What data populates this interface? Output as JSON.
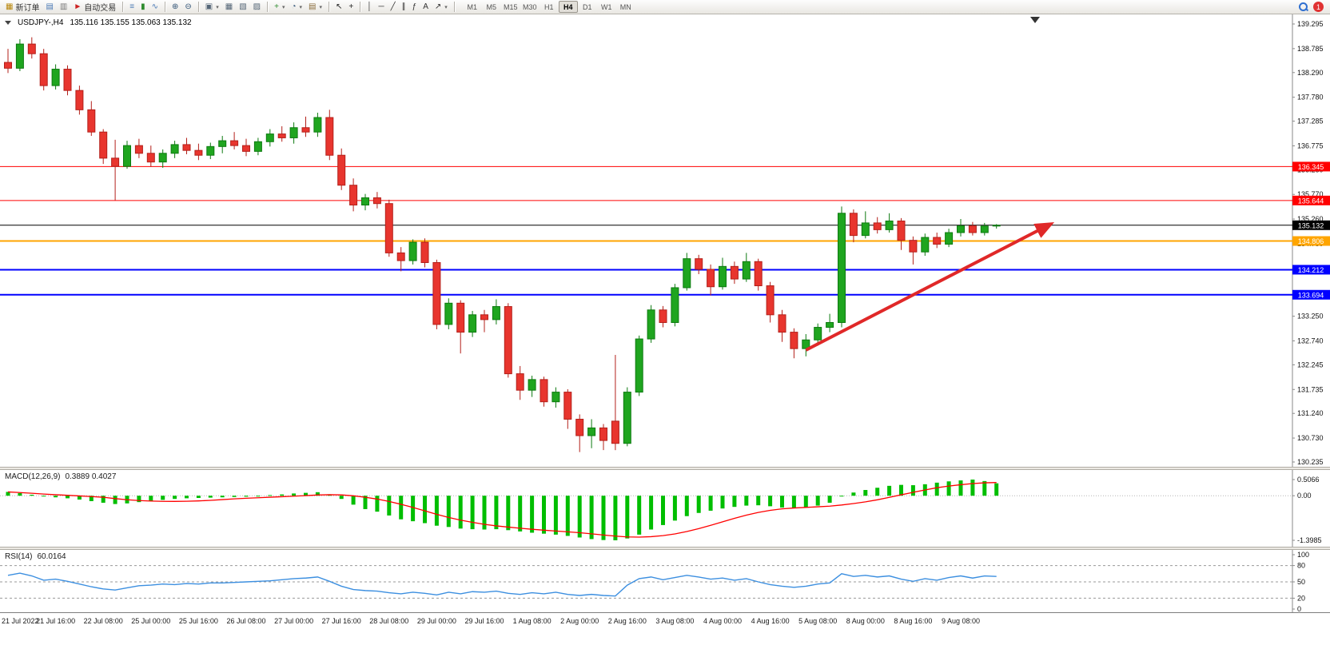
{
  "toolbar": {
    "notification_count": "1",
    "groups": [
      {
        "name": "trade",
        "items": [
          {
            "name": "new-order-button",
            "icon": "new-order-icon",
            "glyph": "▦",
            "glyph_color": "#b8860b",
            "label": "新订单"
          },
          {
            "name": "chart-window-button",
            "icon": "chart-window-icon",
            "glyph": "▤",
            "glyph_color": "#4a7ab5"
          },
          {
            "name": "profiles-button",
            "icon": "profiles-icon",
            "glyph": "▥",
            "glyph_color": "#777777"
          },
          {
            "name": "auto-trading-button",
            "icon": "auto-trading-icon",
            "glyph": "►",
            "glyph_color": "#cc2222",
            "label": "自动交易"
          }
        ]
      },
      {
        "name": "chart-types",
        "items": [
          {
            "name": "bar-chart-button",
            "icon": "bar-chart-icon",
            "glyph": "≡",
            "glyph_color": "#4a7ab5"
          },
          {
            "name": "candlestick-chart-button",
            "icon": "candlestick-chart-icon",
            "glyph": "▮",
            "glyph_color": "#2e8b2e"
          },
          {
            "name": "line-chart-button",
            "icon": "line-chart-icon",
            "glyph": "∿",
            "glyph_color": "#4a7ab5"
          }
        ]
      },
      {
        "name": "zoom",
        "items": [
          {
            "name": "zoom-in-button",
            "icon": "zoom-in-icon",
            "glyph": "⊕",
            "glyph_color": "#335577"
          },
          {
            "name": "zoom-out-button",
            "icon": "zoom-out-icon",
            "glyph": "⊖",
            "glyph_color": "#335577"
          }
        ]
      },
      {
        "name": "windows",
        "items": [
          {
            "name": "new-chart-button",
            "icon": "new-chart-icon",
            "glyph": "▣",
            "glyph_color": "#556677",
            "dropdown": true
          },
          {
            "name": "tile-windows-button",
            "icon": "tile-windows-icon",
            "glyph": "▦",
            "glyph_color": "#556677"
          },
          {
            "name": "cascade-windows-button",
            "icon": "cascade-windows-icon",
            "glyph": "▧",
            "glyph_color": "#556677"
          },
          {
            "name": "arrange-windows-button",
            "icon": "arrange-windows-icon",
            "glyph": "▨",
            "glyph_color": "#556677"
          }
        ]
      },
      {
        "name": "tools",
        "items": [
          {
            "name": "indicators-button",
            "icon": "indicators-icon",
            "glyph": "+",
            "glyph_color": "#2e8b2e",
            "dropdown": true
          },
          {
            "name": "periods-button",
            "icon": "periods-icon",
            "glyph": "◔",
            "glyph_color": "#335577",
            "dropdown": true
          },
          {
            "name": "templates-button",
            "icon": "templates-icon",
            "glyph": "▤",
            "glyph_color": "#8a6d3b",
            "dropdown": true
          }
        ]
      },
      {
        "name": "cursor",
        "items": [
          {
            "name": "cursor-button",
            "icon": "cursor-icon",
            "glyph": "↖",
            "glyph_color": "#222222"
          },
          {
            "name": "crosshair-button",
            "icon": "crosshair-icon",
            "glyph": "+",
            "glyph_color": "#222222"
          }
        ]
      },
      {
        "name": "drawing",
        "items": [
          {
            "name": "vertical-line-button",
            "icon": "vertical-line-icon",
            "glyph": "│",
            "glyph_color": "#333333"
          },
          {
            "name": "horizontal-line-button",
            "icon": "horizontal-line-icon",
            "glyph": "─",
            "glyph_color": "#333333"
          },
          {
            "name": "trendline-button",
            "icon": "trendline-icon",
            "glyph": "╱",
            "glyph_color": "#333333"
          },
          {
            "name": "channel-button",
            "icon": "channel-icon",
            "glyph": "∥",
            "glyph_color": "#333333"
          },
          {
            "name": "fibonacci-button",
            "icon": "fibonacci-icon",
            "glyph": "ƒ",
            "glyph_color": "#333333"
          },
          {
            "name": "text-button",
            "icon": "text-icon",
            "glyph": "A",
            "glyph_color": "#333333"
          },
          {
            "name": "arrows-button",
            "icon": "arrows-icon",
            "glyph": "↗",
            "glyph_color": "#333333",
            "dropdown": true
          }
        ]
      }
    ],
    "timeframes": {
      "items": [
        "M1",
        "M5",
        "M15",
        "M30",
        "H1",
        "H4",
        "D1",
        "W1",
        "MN"
      ],
      "active": "H4"
    }
  },
  "chart": {
    "header_symbol": "USDJPY-,H4",
    "header_ohlc": "135.116 135.155 135.063 135.132",
    "colors": {
      "up": "#1fa51f",
      "up_border": "#0d7a10",
      "down": "#e8352e",
      "down_border": "#b3201a",
      "macd_bar": "#00be00",
      "macd_signal": "#ff0000",
      "rsi_line": "#3c8fe0",
      "axis_line": "#8a8a8a",
      "grid": "#c8c8c8"
    }
  },
  "chart_data": {
    "type": "candlestick+indicators",
    "symbol": "USDJPY-",
    "timeframe": "H4",
    "current_ohlc": {
      "open": "135.116",
      "high": "135.155",
      "low": "135.063",
      "close": "135.132"
    },
    "y_axis": {
      "min": 130.235,
      "max": 139.295,
      "labels": [
        "139.295",
        "138.785",
        "138.290",
        "137.780",
        "137.285",
        "136.775",
        "136.280",
        "135.770",
        "135.260",
        "134.750",
        "134.240",
        "133.730",
        "133.250",
        "132.740",
        "132.245",
        "131.735",
        "131.240",
        "130.730",
        "130.235"
      ]
    },
    "levels": [
      {
        "price": 136.345,
        "label": "136.345",
        "color": "#ff0000",
        "width": 1
      },
      {
        "price": 135.644,
        "label": "135.644",
        "color": "#ff0000",
        "width": 1
      },
      {
        "price": 135.132,
        "label": "135.132",
        "color": "#000000",
        "width": 1,
        "current": true
      },
      {
        "price": 134.806,
        "label": "134.806",
        "color": "#ffa500",
        "width": 2
      },
      {
        "price": 134.212,
        "label": "134.212",
        "color": "#0000ff",
        "width": 2
      },
      {
        "price": 133.694,
        "label": "133.694",
        "color": "#0000ff",
        "width": 2
      }
    ],
    "time_labels": [
      "21 Jul 2022",
      "21 Jul 16:00",
      "22 Jul 08:00",
      "25 Jul 00:00",
      "25 Jul 16:00",
      "26 Jul 08:00",
      "27 Jul 00:00",
      "27 Jul 16:00",
      "28 Jul 08:00",
      "29 Jul 00:00",
      "29 Jul 16:00",
      "1 Aug 08:00",
      "2 Aug 00:00",
      "2 Aug 16:00",
      "3 Aug 08:00",
      "4 Aug 00:00",
      "4 Aug 16:00",
      "5 Aug 08:00",
      "8 Aug 00:00",
      "8 Aug 16:00",
      "9 Aug 08:00"
    ],
    "label_every_n_candles": 4,
    "candles": [
      [
        138.5,
        138.78,
        138.28,
        138.38
      ],
      [
        138.38,
        138.98,
        138.32,
        138.88
      ],
      [
        138.88,
        139.02,
        138.58,
        138.68
      ],
      [
        138.68,
        138.78,
        137.92,
        138.02
      ],
      [
        138.02,
        138.46,
        137.94,
        138.36
      ],
      [
        138.36,
        138.44,
        137.82,
        137.92
      ],
      [
        137.92,
        138.02,
        137.42,
        137.52
      ],
      [
        137.52,
        137.7,
        136.98,
        137.06
      ],
      [
        137.06,
        137.12,
        136.4,
        136.52
      ],
      [
        136.52,
        136.9,
        135.65,
        136.35
      ],
      [
        136.35,
        136.88,
        136.3,
        136.78
      ],
      [
        136.78,
        136.92,
        136.52,
        136.62
      ],
      [
        136.62,
        136.78,
        136.34,
        136.44
      ],
      [
        136.44,
        136.7,
        136.32,
        136.62
      ],
      [
        136.62,
        136.88,
        136.52,
        136.8
      ],
      [
        136.8,
        136.94,
        136.6,
        136.68
      ],
      [
        136.68,
        136.82,
        136.48,
        136.58
      ],
      [
        136.58,
        136.84,
        136.5,
        136.76
      ],
      [
        136.76,
        136.98,
        136.62,
        136.88
      ],
      [
        136.88,
        137.06,
        136.7,
        136.78
      ],
      [
        136.78,
        136.92,
        136.56,
        136.66
      ],
      [
        136.66,
        136.94,
        136.58,
        136.86
      ],
      [
        136.86,
        137.12,
        136.76,
        137.02
      ],
      [
        137.02,
        137.18,
        136.86,
        136.94
      ],
      [
        136.94,
        137.26,
        136.82,
        137.15
      ],
      [
        137.15,
        137.38,
        136.96,
        137.06
      ],
      [
        137.06,
        137.46,
        136.96,
        137.36
      ],
      [
        137.36,
        137.52,
        136.48,
        136.58
      ],
      [
        136.58,
        136.72,
        135.86,
        135.96
      ],
      [
        135.96,
        136.1,
        135.42,
        135.55
      ],
      [
        135.55,
        135.78,
        135.44,
        135.7
      ],
      [
        135.7,
        135.82,
        135.48,
        135.58
      ],
      [
        135.58,
        135.66,
        134.48,
        134.56
      ],
      [
        134.56,
        134.68,
        134.18,
        134.4
      ],
      [
        134.4,
        134.84,
        134.32,
        134.78
      ],
      [
        134.78,
        134.86,
        134.26,
        134.36
      ],
      [
        134.36,
        134.42,
        132.98,
        133.08
      ],
      [
        133.08,
        133.62,
        132.98,
        133.52
      ],
      [
        133.52,
        133.58,
        132.48,
        132.92
      ],
      [
        132.92,
        133.36,
        132.82,
        133.28
      ],
      [
        133.28,
        133.38,
        132.92,
        133.18
      ],
      [
        133.18,
        133.6,
        133.08,
        133.45
      ],
      [
        133.45,
        133.52,
        131.98,
        132.06
      ],
      [
        132.06,
        132.22,
        131.52,
        131.72
      ],
      [
        131.72,
        132.02,
        131.58,
        131.94
      ],
      [
        131.94,
        132.0,
        131.38,
        131.48
      ],
      [
        131.48,
        131.78,
        131.36,
        131.68
      ],
      [
        131.68,
        131.74,
        130.92,
        131.12
      ],
      [
        131.12,
        131.22,
        130.44,
        130.78
      ],
      [
        130.78,
        131.12,
        130.52,
        130.94
      ],
      [
        130.94,
        131.02,
        130.48,
        130.68
      ],
      [
        131.08,
        132.45,
        130.48,
        130.62
      ],
      [
        130.62,
        131.78,
        130.56,
        131.68
      ],
      [
        131.68,
        132.85,
        131.6,
        132.78
      ],
      [
        132.78,
        133.48,
        132.7,
        133.38
      ],
      [
        133.38,
        133.46,
        133.02,
        133.12
      ],
      [
        133.12,
        133.92,
        133.04,
        133.84
      ],
      [
        133.84,
        134.56,
        133.78,
        134.44
      ],
      [
        134.44,
        134.52,
        134.12,
        134.22
      ],
      [
        134.22,
        134.32,
        133.68,
        133.86
      ],
      [
        133.86,
        134.46,
        133.8,
        134.28
      ],
      [
        134.28,
        134.38,
        133.92,
        134.02
      ],
      [
        134.02,
        134.56,
        133.96,
        134.38
      ],
      [
        134.38,
        134.44,
        133.78,
        133.88
      ],
      [
        133.88,
        133.96,
        133.12,
        133.28
      ],
      [
        133.28,
        133.38,
        132.72,
        132.92
      ],
      [
        132.92,
        133.0,
        132.38,
        132.58
      ],
      [
        132.58,
        132.88,
        132.42,
        132.76
      ],
      [
        132.76,
        133.1,
        132.64,
        133.02
      ],
      [
        133.02,
        133.3,
        132.92,
        133.12
      ],
      [
        133.12,
        135.52,
        133.02,
        135.38
      ],
      [
        135.38,
        135.46,
        134.78,
        134.92
      ],
      [
        134.92,
        135.42,
        134.86,
        135.18
      ],
      [
        135.18,
        135.3,
        134.96,
        135.04
      ],
      [
        135.04,
        135.38,
        134.98,
        135.22
      ],
      [
        135.22,
        135.28,
        134.62,
        134.82
      ],
      [
        134.82,
        134.9,
        134.32,
        134.58
      ],
      [
        134.58,
        134.96,
        134.5,
        134.88
      ],
      [
        134.88,
        134.98,
        134.66,
        134.74
      ],
      [
        134.74,
        135.06,
        134.68,
        134.98
      ],
      [
        134.98,
        135.26,
        134.9,
        135.12
      ],
      [
        135.12,
        135.2,
        134.92,
        134.98
      ],
      [
        134.98,
        135.18,
        134.92,
        135.116
      ],
      [
        135.116,
        135.155,
        135.063,
        135.132
      ]
    ],
    "macd": {
      "name": "MACD(12,26,9)",
      "values_text": "0.3889 0.4027",
      "max": 0.5066,
      "min": -1.3985,
      "axis_labels": [
        "0.5066",
        "0.00",
        "-1.3985"
      ],
      "histogram": [
        0.12,
        0.08,
        0.03,
        -0.02,
        -0.05,
        -0.08,
        -0.12,
        -0.17,
        -0.22,
        -0.26,
        -0.24,
        -0.2,
        -0.16,
        -0.13,
        -0.1,
        -0.08,
        -0.07,
        -0.06,
        -0.05,
        -0.04,
        -0.03,
        -0.01,
        0.02,
        0.04,
        0.07,
        0.09,
        0.11,
        0.04,
        -0.1,
        -0.28,
        -0.42,
        -0.5,
        -0.62,
        -0.74,
        -0.8,
        -0.86,
        -0.94,
        -0.98,
        -1.03,
        -1.05,
        -1.06,
        -1.05,
        -1.08,
        -1.12,
        -1.16,
        -1.19,
        -1.22,
        -1.26,
        -1.31,
        -1.36,
        -1.39,
        -1.3985,
        -1.34,
        -1.22,
        -1.06,
        -0.92,
        -0.78,
        -0.64,
        -0.54,
        -0.47,
        -0.4,
        -0.35,
        -0.31,
        -0.3,
        -0.33,
        -0.37,
        -0.39,
        -0.37,
        -0.31,
        -0.22,
        -0.02,
        0.1,
        0.18,
        0.25,
        0.31,
        0.34,
        0.33,
        0.36,
        0.41,
        0.45,
        0.48,
        0.5066,
        0.46,
        0.3889
      ]
    },
    "rsi": {
      "name": "RSI(14)",
      "value_text": "60.0164",
      "axis_labels": [
        "100",
        "80",
        "50",
        "20",
        "0"
      ],
      "levels": [
        80,
        50,
        20
      ],
      "values": [
        62,
        66,
        61,
        53,
        55,
        51,
        46,
        41,
        37,
        35,
        39,
        43,
        44,
        46,
        45,
        47,
        46,
        48,
        48,
        49,
        50,
        51,
        52,
        54,
        56,
        57,
        59,
        51,
        42,
        36,
        34,
        33,
        30,
        28,
        31,
        29,
        26,
        31,
        28,
        32,
        31,
        33,
        29,
        27,
        30,
        28,
        31,
        27,
        25,
        27,
        25,
        24,
        44,
        56,
        59,
        54,
        58,
        62,
        59,
        55,
        57,
        53,
        56,
        50,
        45,
        42,
        40,
        42,
        46,
        48,
        65,
        60,
        62,
        59,
        61,
        55,
        51,
        56,
        53,
        58,
        61,
        57,
        61,
        60.0164
      ]
    },
    "trend_arrow": {
      "from_candle": 67,
      "from_price": 132.55,
      "to_candle": 87.5,
      "to_price": 135.15,
      "color": "#e02828"
    }
  }
}
